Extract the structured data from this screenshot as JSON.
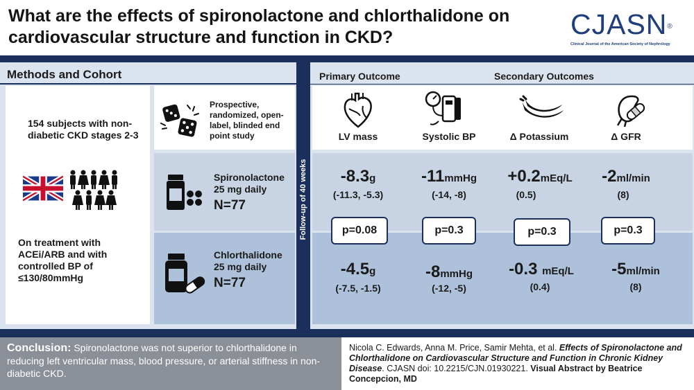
{
  "header": {
    "title": "What are the effects of spironolactone and chlorthalidone on cardiovascular structure and function in CKD?",
    "logo_text": "CJASN",
    "logo_mark": "®",
    "logo_subtitle": "Clinical Journal of the American Society of Nephrology"
  },
  "methods": {
    "section_title": "Methods and Cohort",
    "cohort_text": "154 subjects with non-diabetic CKD stages 2-3",
    "treatment_text": "On treatment with ACEi/ARB and with controlled BP of ≤130/80mmHg",
    "design_text": "Prospective, randomized, open-label, blinded end point study",
    "arms": [
      {
        "drug": "Spironolactone",
        "dose": "25 mg daily",
        "n": "N=77"
      },
      {
        "drug": "Chlorthalidone",
        "dose": "25 mg daily",
        "n": "N=77"
      }
    ]
  },
  "outcomes": {
    "followup": "Follow-up of 40 weeks",
    "primary_header": "Primary Outcome",
    "secondary_header": "Secondary Outcomes",
    "columns": [
      {
        "label": "LV mass",
        "icon": "heart-icon",
        "spiro": {
          "value": "-8.3",
          "unit": "g",
          "ci": "(-11.3, -5.3)"
        },
        "p": "p=0.08",
        "chlor": {
          "value": "-4.5",
          "unit": "g",
          "ci": "(-7.5, -1.5)"
        }
      },
      {
        "label": "Systolic BP",
        "icon": "blood-pressure-monitor-icon",
        "spiro": {
          "value": "-11",
          "unit": "mmHg",
          "ci": "(-14, -8)"
        },
        "p": "p=0.3",
        "chlor": {
          "value": "-8",
          "unit": "mmHg",
          "ci": "(-12, -5)"
        }
      },
      {
        "label": "Δ Potassium",
        "icon": "bananas-icon",
        "spiro": {
          "value": "+0.2",
          "unit": "mEq/L",
          "ci": "(0.5)"
        },
        "p": "p=0.3",
        "chlor": {
          "value": "-0.3 ",
          "unit": "mEq/L",
          "ci": "(0.4)"
        }
      },
      {
        "label": "Δ GFR",
        "icon": "kidney-icon",
        "spiro": {
          "value": "-2",
          "unit": "ml/min",
          "ci": "(8)"
        },
        "p": "p=0.3",
        "chlor": {
          "value": "-5",
          "unit": "ml/min",
          "ci": "(8)"
        }
      }
    ]
  },
  "conclusion": {
    "label": "Conclusion:",
    "text": " Spironolactone was not superior to chlorthalidone in reducing left ventricular mass, blood pressure, or arterial stiffness in non-diabetic CKD."
  },
  "citation": {
    "authors": "Nicola C. Edwards, Anna M. Price, Samir Mehta, et al. ",
    "article": "Effects of Spironolactone and Chlorthalidone on Cardiovascular Structure and Function in Chronic Kidney Disease",
    "doi": ". CJASN doi: 10.2215/CJN.01930221. ",
    "credit": "Visual Abstract by Beatrice Concepcion, MD"
  },
  "colors": {
    "navy": "#1b2f5c",
    "light_blue": "#dbe3ee",
    "mid_blue": "#c8d4e4",
    "deep_blue": "#aec1db",
    "grey": "#8a8f98"
  }
}
